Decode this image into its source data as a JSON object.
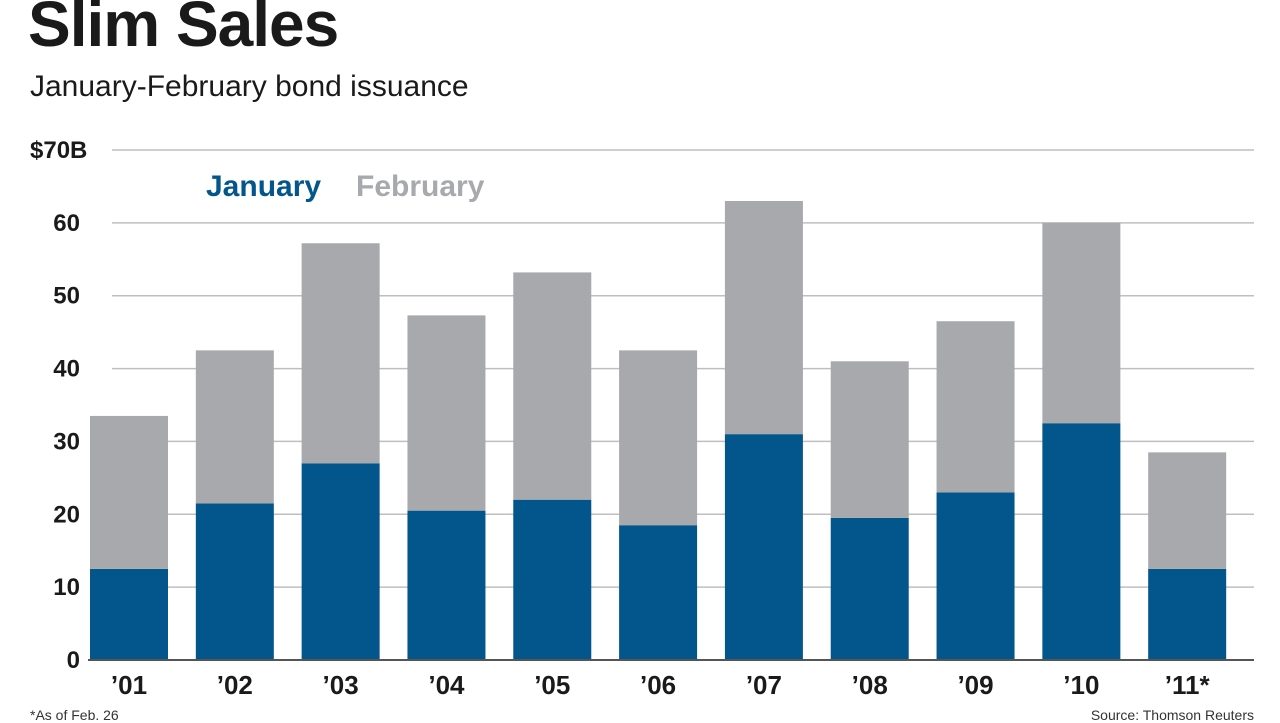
{
  "title": "Slim Sales",
  "subtitle": "January-February bond issuance",
  "footnote": "*As of Feb. 26",
  "source": "Source: Thomson Reuters",
  "colors": {
    "january": "#03568b",
    "february": "#a7a9ac",
    "grid": "#bfbfbf",
    "axis": "#555555"
  },
  "chart_data": {
    "type": "bar",
    "stacked": true,
    "categories": [
      "’01",
      "’02",
      "’03",
      "’04",
      "’05",
      "’06",
      "’07",
      "’08",
      "’09",
      "’10",
      "’11*"
    ],
    "series": [
      {
        "name": "January",
        "values": [
          12.5,
          21.5,
          27,
          20.5,
          22,
          18.5,
          31,
          19.5,
          23,
          32.5,
          12.5
        ]
      },
      {
        "name": "February",
        "values": [
          21,
          21,
          30.2,
          26.8,
          31.2,
          24,
          32,
          21.5,
          23.5,
          27.5,
          16
        ]
      }
    ],
    "ylim": [
      0,
      70
    ],
    "yticks": [
      0,
      10,
      20,
      30,
      40,
      50,
      60,
      70
    ],
    "ytick_labels": [
      "0",
      "10",
      "20",
      "30",
      "40",
      "50",
      "60",
      "$70B"
    ],
    "grid": true,
    "legend": "top-left"
  }
}
